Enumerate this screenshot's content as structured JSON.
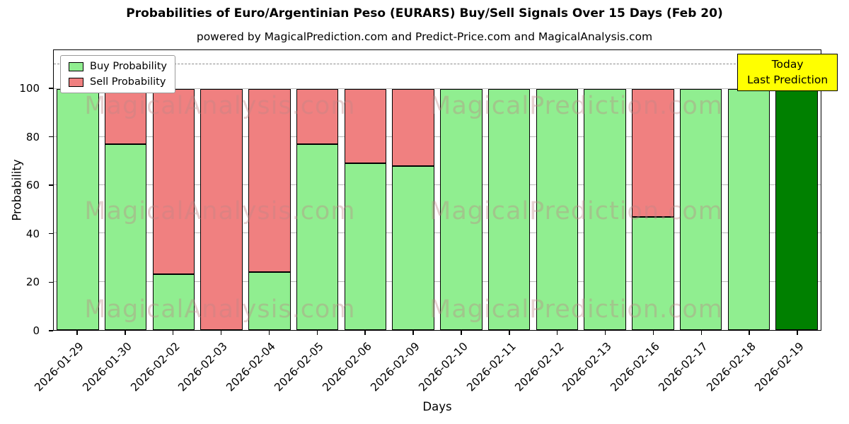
{
  "title": "Probabilities of Euro/Argentinian Peso (EURARS) Buy/Sell Signals Over 15 Days (Feb 20)",
  "subtitle": "powered by MagicalPrediction.com and Predict-Price.com and MagicalAnalysis.com",
  "annotation": {
    "line1": "Today",
    "line2": "Last Prediction",
    "bg_color": "#ffff00"
  },
  "legend": [
    {
      "label": "Buy Probability",
      "color": "#90EE90"
    },
    {
      "label": "Sell Probability",
      "color": "#F08080"
    }
  ],
  "watermarks": [
    "MagicalAnalysis.com",
    "MagicalPrediction.com"
  ],
  "chart_data": {
    "type": "bar",
    "stacked": true,
    "title": "Probabilities of Euro/Argentinian Peso (EURARS) Buy/Sell Signals Over 15 Days (Feb 20)",
    "xlabel": "Days",
    "ylabel": "Probability",
    "categories": [
      "2026-01-29",
      "2026-01-30",
      "2026-02-02",
      "2026-02-03",
      "2026-02-04",
      "2026-02-05",
      "2026-02-06",
      "2026-02-09",
      "2026-02-10",
      "2026-02-11",
      "2026-02-12",
      "2026-02-13",
      "2026-02-16",
      "2026-02-17",
      "2026-02-18",
      "2026-02-19"
    ],
    "series": [
      {
        "name": "Buy Probability",
        "color": "#90EE90",
        "values": [
          100,
          77,
          23,
          0,
          24,
          77,
          69,
          68,
          100,
          100,
          100,
          100,
          47,
          100,
          100,
          100
        ]
      },
      {
        "name": "Sell Probability",
        "color": "#F08080",
        "values": [
          0,
          23,
          77,
          100,
          76,
          23,
          31,
          32,
          0,
          0,
          0,
          0,
          53,
          0,
          0,
          0
        ]
      }
    ],
    "today_index": 15,
    "today_buy_color": "#008000",
    "bar_edge_color": "#000000",
    "yticks": [
      0,
      20,
      40,
      60,
      80,
      100
    ],
    "ylim": [
      0,
      116
    ],
    "dashed_line_y": 110,
    "grid": true,
    "legend_position": "upper left"
  }
}
